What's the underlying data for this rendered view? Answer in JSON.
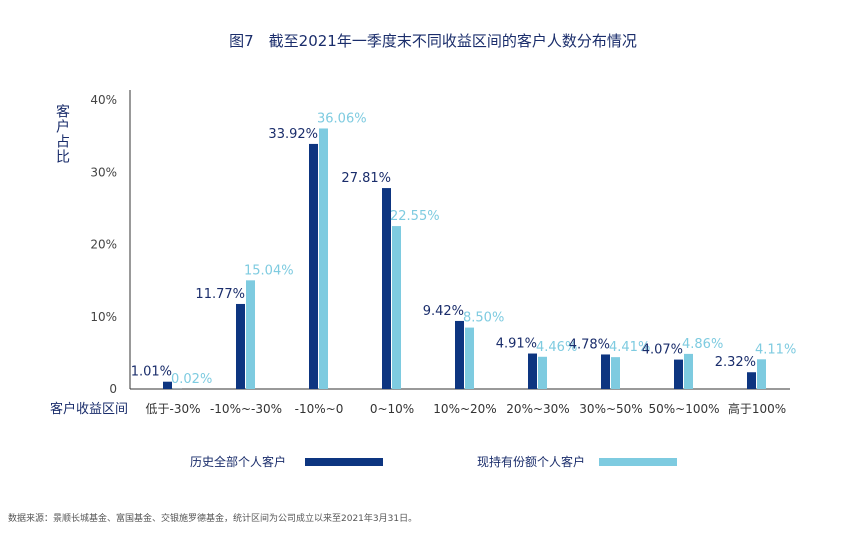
{
  "chart_data": {
    "type": "bar",
    "title": "图7　截至2021年一季度末不同收益区间的客户人数分布情况",
    "ylabel": "客户占比",
    "xlabel": "客户收益区间",
    "ylim": [
      0,
      40
    ],
    "yticks": [
      "40%",
      "30%",
      "20%",
      "10%",
      "0"
    ],
    "categories": [
      "低于-30%",
      "-10%~-30%",
      "-10%~0",
      "0~10%",
      "10%~20%",
      "20%~30%",
      "30%~50%",
      "50%~100%",
      "高于100%"
    ],
    "series": [
      {
        "name": "历史全部个人客户",
        "color": "#0d3580",
        "values": [
          1.01,
          11.77,
          33.92,
          27.81,
          9.42,
          4.91,
          4.78,
          4.07,
          2.32
        ],
        "labels": [
          "1.01%",
          "11.77%",
          "33.92%",
          "27.81%",
          "9.42%",
          "4.91%",
          "4.78%",
          "4.07%",
          "2.32%"
        ]
      },
      {
        "name": "现持有份额个人客户",
        "color": "#7ecbe0",
        "values": [
          0.02,
          15.04,
          36.06,
          22.55,
          8.5,
          4.46,
          4.41,
          4.86,
          4.11
        ],
        "labels": [
          "0.02%",
          "15.04%",
          "36.06%",
          "22.55%",
          "8.50%",
          "4.46%",
          "4.41%",
          "4.86%",
          "4.11%"
        ]
      }
    ],
    "legend_position": "bottom",
    "grid": false
  },
  "footnote": "数据来源：景顺长城基金、富国基金、交银施罗德基金，统计区间为公司成立以来至2021年3月31日。"
}
